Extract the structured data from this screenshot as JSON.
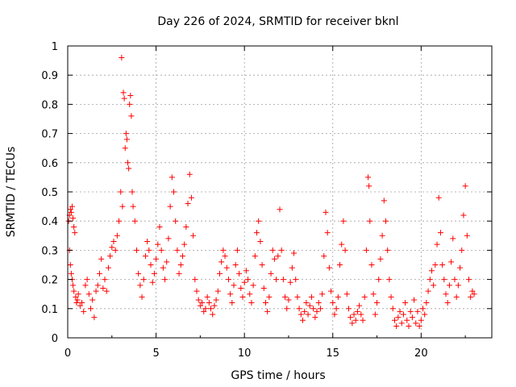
{
  "chart_data": {
    "type": "scatter",
    "title": "Day 226 of 2024, SRMTID for receiver bknl",
    "xlabel": "GPS time / hours",
    "ylabel": "SRMTID / TECUs",
    "xlim": [
      0,
      24
    ],
    "ylim": [
      0,
      1
    ],
    "xticks": [
      0,
      5,
      10,
      15,
      20
    ],
    "yticks": [
      0,
      0.1,
      0.2,
      0.3,
      0.4,
      0.5,
      0.6,
      0.7,
      0.8,
      0.9,
      1
    ],
    "xtick_labels": [
      "0",
      "5",
      "10",
      "15",
      "20"
    ],
    "ytick_labels": [
      "0",
      "0.1",
      "0.2",
      "0.3",
      "0.4",
      "0.5",
      "0.6",
      "0.7",
      "0.8",
      "0.9",
      "1"
    ],
    "grid": true,
    "marker": "+",
    "color": "#ff0000",
    "series": [
      {
        "name": "SRMTID",
        "points": [
          [
            0.05,
            0.4
          ],
          [
            0.1,
            0.42
          ],
          [
            0.15,
            0.44
          ],
          [
            0.2,
            0.43
          ],
          [
            0.25,
            0.45
          ],
          [
            0.3,
            0.41
          ],
          [
            0.35,
            0.38
          ],
          [
            0.4,
            0.36
          ],
          [
            0.1,
            0.3
          ],
          [
            0.15,
            0.25
          ],
          [
            0.2,
            0.22
          ],
          [
            0.25,
            0.2
          ],
          [
            0.3,
            0.18
          ],
          [
            0.35,
            0.16
          ],
          [
            0.45,
            0.14
          ],
          [
            0.5,
            0.12
          ],
          [
            0.55,
            0.13
          ],
          [
            0.6,
            0.15
          ],
          [
            0.7,
            0.11
          ],
          [
            0.8,
            0.12
          ],
          [
            0.9,
            0.09
          ],
          [
            1.0,
            0.18
          ],
          [
            1.1,
            0.2
          ],
          [
            1.2,
            0.15
          ],
          [
            1.3,
            0.1
          ],
          [
            1.4,
            0.13
          ],
          [
            1.5,
            0.07
          ],
          [
            1.6,
            0.16
          ],
          [
            1.7,
            0.18
          ],
          [
            1.8,
            0.22
          ],
          [
            1.9,
            0.27
          ],
          [
            2.0,
            0.17
          ],
          [
            2.1,
            0.2
          ],
          [
            2.2,
            0.16
          ],
          [
            2.3,
            0.24
          ],
          [
            2.4,
            0.28
          ],
          [
            2.5,
            0.31
          ],
          [
            2.6,
            0.33
          ],
          [
            2.7,
            0.3
          ],
          [
            2.8,
            0.35
          ],
          [
            2.9,
            0.4
          ],
          [
            3.0,
            0.5
          ],
          [
            3.05,
            0.96
          ],
          [
            3.1,
            0.45
          ],
          [
            3.15,
            0.84
          ],
          [
            3.2,
            0.82
          ],
          [
            3.25,
            0.65
          ],
          [
            3.3,
            0.7
          ],
          [
            3.35,
            0.68
          ],
          [
            3.4,
            0.6
          ],
          [
            3.45,
            0.58
          ],
          [
            3.5,
            0.8
          ],
          [
            3.55,
            0.83
          ],
          [
            3.6,
            0.76
          ],
          [
            3.65,
            0.5
          ],
          [
            3.7,
            0.45
          ],
          [
            3.8,
            0.4
          ],
          [
            3.9,
            0.3
          ],
          [
            4.0,
            0.22
          ],
          [
            4.1,
            0.18
          ],
          [
            4.2,
            0.14
          ],
          [
            4.3,
            0.2
          ],
          [
            4.4,
            0.28
          ],
          [
            4.5,
            0.33
          ],
          [
            4.6,
            0.3
          ],
          [
            4.7,
            0.25
          ],
          [
            4.8,
            0.19
          ],
          [
            4.9,
            0.22
          ],
          [
            5.0,
            0.27
          ],
          [
            5.1,
            0.32
          ],
          [
            5.2,
            0.38
          ],
          [
            5.3,
            0.3
          ],
          [
            5.4,
            0.24
          ],
          [
            5.5,
            0.2
          ],
          [
            5.6,
            0.26
          ],
          [
            5.7,
            0.34
          ],
          [
            5.8,
            0.45
          ],
          [
            5.9,
            0.55
          ],
          [
            6.0,
            0.5
          ],
          [
            6.1,
            0.4
          ],
          [
            6.2,
            0.3
          ],
          [
            6.3,
            0.22
          ],
          [
            6.4,
            0.25
          ],
          [
            6.5,
            0.28
          ],
          [
            6.6,
            0.32
          ],
          [
            6.7,
            0.38
          ],
          [
            6.8,
            0.46
          ],
          [
            6.9,
            0.56
          ],
          [
            7.0,
            0.48
          ],
          [
            7.1,
            0.35
          ],
          [
            7.2,
            0.2
          ],
          [
            7.3,
            0.16
          ],
          [
            7.4,
            0.13
          ],
          [
            7.5,
            0.11
          ],
          [
            7.6,
            0.12
          ],
          [
            7.7,
            0.09
          ],
          [
            7.8,
            0.1
          ],
          [
            7.9,
            0.14
          ],
          [
            8.0,
            0.12
          ],
          [
            8.1,
            0.1
          ],
          [
            8.2,
            0.08
          ],
          [
            8.3,
            0.11
          ],
          [
            8.4,
            0.13
          ],
          [
            8.5,
            0.16
          ],
          [
            8.6,
            0.22
          ],
          [
            8.7,
            0.26
          ],
          [
            8.8,
            0.3
          ],
          [
            8.9,
            0.28
          ],
          [
            9.0,
            0.24
          ],
          [
            9.1,
            0.2
          ],
          [
            9.2,
            0.15
          ],
          [
            9.3,
            0.12
          ],
          [
            9.4,
            0.18
          ],
          [
            9.5,
            0.25
          ],
          [
            9.6,
            0.3
          ],
          [
            9.7,
            0.22
          ],
          [
            9.8,
            0.17
          ],
          [
            9.9,
            0.14
          ],
          [
            10.0,
            0.19
          ],
          [
            10.1,
            0.23
          ],
          [
            10.2,
            0.2
          ],
          [
            10.3,
            0.15
          ],
          [
            10.4,
            0.12
          ],
          [
            10.5,
            0.18
          ],
          [
            10.6,
            0.28
          ],
          [
            10.7,
            0.36
          ],
          [
            10.8,
            0.4
          ],
          [
            10.9,
            0.33
          ],
          [
            11.0,
            0.25
          ],
          [
            11.1,
            0.17
          ],
          [
            11.2,
            0.12
          ],
          [
            11.3,
            0.09
          ],
          [
            11.4,
            0.14
          ],
          [
            11.5,
            0.22
          ],
          [
            11.6,
            0.3
          ],
          [
            11.7,
            0.27
          ],
          [
            11.8,
            0.2
          ],
          [
            11.9,
            0.28
          ],
          [
            12.0,
            0.44
          ],
          [
            12.1,
            0.3
          ],
          [
            12.2,
            0.2
          ],
          [
            12.3,
            0.14
          ],
          [
            12.4,
            0.1
          ],
          [
            12.5,
            0.13
          ],
          [
            12.6,
            0.19
          ],
          [
            12.7,
            0.24
          ],
          [
            12.8,
            0.29
          ],
          [
            12.9,
            0.2
          ],
          [
            13.0,
            0.14
          ],
          [
            13.1,
            0.1
          ],
          [
            13.2,
            0.08
          ],
          [
            13.3,
            0.06
          ],
          [
            13.4,
            0.09
          ],
          [
            13.5,
            0.12
          ],
          [
            13.6,
            0.08
          ],
          [
            13.7,
            0.11
          ],
          [
            13.8,
            0.14
          ],
          [
            13.9,
            0.1
          ],
          [
            14.0,
            0.07
          ],
          [
            14.1,
            0.09
          ],
          [
            14.2,
            0.12
          ],
          [
            14.3,
            0.1
          ],
          [
            14.4,
            0.15
          ],
          [
            14.5,
            0.28
          ],
          [
            14.6,
            0.43
          ],
          [
            14.7,
            0.36
          ],
          [
            14.8,
            0.24
          ],
          [
            14.9,
            0.16
          ],
          [
            15.0,
            0.12
          ],
          [
            15.1,
            0.08
          ],
          [
            15.2,
            0.1
          ],
          [
            15.3,
            0.14
          ],
          [
            15.4,
            0.25
          ],
          [
            15.5,
            0.32
          ],
          [
            15.6,
            0.4
          ],
          [
            15.7,
            0.3
          ],
          [
            15.8,
            0.15
          ],
          [
            15.9,
            0.1
          ],
          [
            16.0,
            0.07
          ],
          [
            16.1,
            0.05
          ],
          [
            16.2,
            0.08
          ],
          [
            16.3,
            0.06
          ],
          [
            16.4,
            0.09
          ],
          [
            16.5,
            0.11
          ],
          [
            16.6,
            0.08
          ],
          [
            16.7,
            0.06
          ],
          [
            16.8,
            0.14
          ],
          [
            16.9,
            0.3
          ],
          [
            17.0,
            0.55
          ],
          [
            17.05,
            0.52
          ],
          [
            17.1,
            0.4
          ],
          [
            17.2,
            0.25
          ],
          [
            17.3,
            0.15
          ],
          [
            17.4,
            0.08
          ],
          [
            17.5,
            0.12
          ],
          [
            17.6,
            0.2
          ],
          [
            17.7,
            0.27
          ],
          [
            17.8,
            0.35
          ],
          [
            17.9,
            0.47
          ],
          [
            18.0,
            0.4
          ],
          [
            18.1,
            0.3
          ],
          [
            18.2,
            0.2
          ],
          [
            18.3,
            0.14
          ],
          [
            18.4,
            0.1
          ],
          [
            18.5,
            0.06
          ],
          [
            18.6,
            0.04
          ],
          [
            18.7,
            0.07
          ],
          [
            18.8,
            0.09
          ],
          [
            18.9,
            0.05
          ],
          [
            19.0,
            0.08
          ],
          [
            19.1,
            0.12
          ],
          [
            19.2,
            0.06
          ],
          [
            19.3,
            0.04
          ],
          [
            19.4,
            0.09
          ],
          [
            19.5,
            0.07
          ],
          [
            19.6,
            0.13
          ],
          [
            19.7,
            0.05
          ],
          [
            19.8,
            0.09
          ],
          [
            19.9,
            0.04
          ],
          [
            20.0,
            0.06
          ],
          [
            20.1,
            0.1
          ],
          [
            20.2,
            0.08
          ],
          [
            20.3,
            0.12
          ],
          [
            20.4,
            0.16
          ],
          [
            20.5,
            0.2
          ],
          [
            20.6,
            0.23
          ],
          [
            20.7,
            0.18
          ],
          [
            20.8,
            0.25
          ],
          [
            20.9,
            0.32
          ],
          [
            21.0,
            0.48
          ],
          [
            21.1,
            0.36
          ],
          [
            21.2,
            0.25
          ],
          [
            21.3,
            0.2
          ],
          [
            21.4,
            0.15
          ],
          [
            21.5,
            0.12
          ],
          [
            21.6,
            0.18
          ],
          [
            21.7,
            0.26
          ],
          [
            21.8,
            0.34
          ],
          [
            21.9,
            0.2
          ],
          [
            22.0,
            0.14
          ],
          [
            22.1,
            0.18
          ],
          [
            22.2,
            0.24
          ],
          [
            22.3,
            0.3
          ],
          [
            22.4,
            0.42
          ],
          [
            22.5,
            0.52
          ],
          [
            22.6,
            0.35
          ],
          [
            22.7,
            0.2
          ],
          [
            22.8,
            0.14
          ],
          [
            22.9,
            0.16
          ],
          [
            23.0,
            0.15
          ]
        ]
      }
    ]
  }
}
